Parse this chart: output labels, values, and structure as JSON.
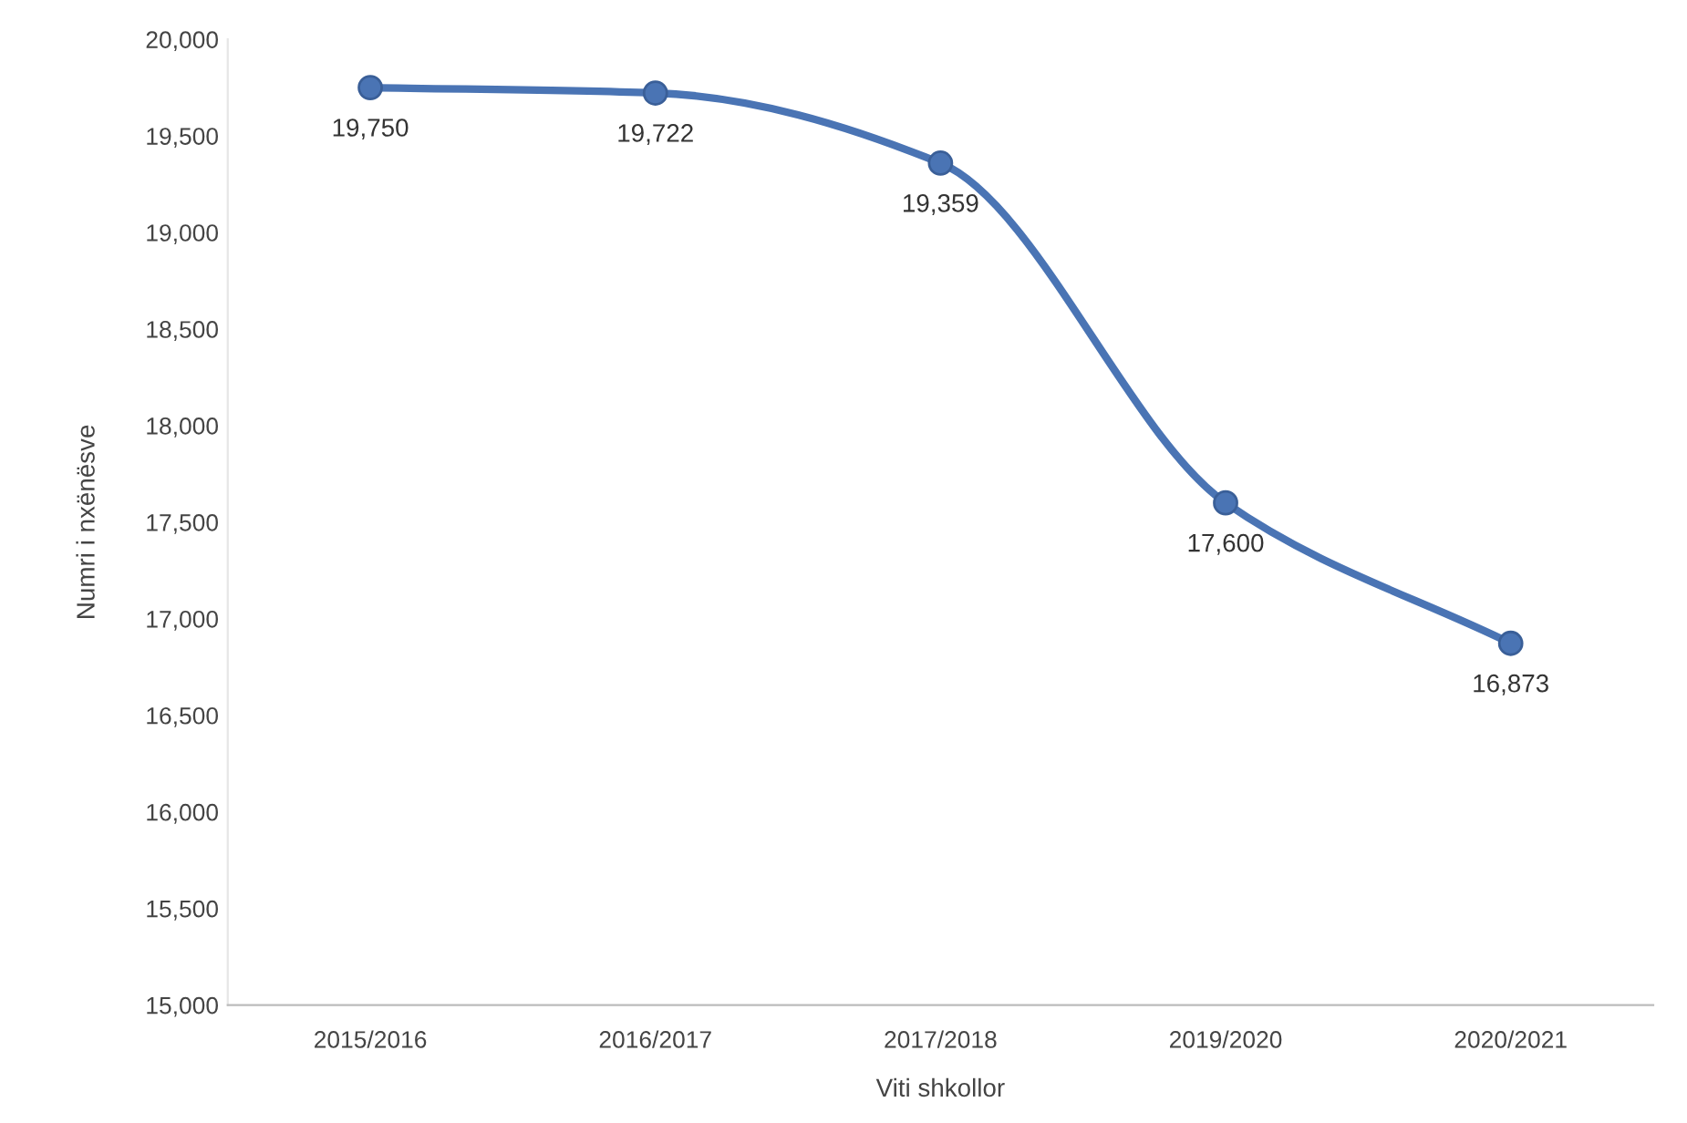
{
  "chart_data": {
    "type": "line",
    "xlabel": "Viti shkollor",
    "ylabel": "Numri i nxënësve",
    "categories": [
      "2015/2016",
      "2016/2017",
      "2017/2018",
      "2019/2020",
      "2020/2021"
    ],
    "series": [
      {
        "color": "#4a74b4",
        "values": [
          19750,
          19722,
          19359,
          17600,
          16873
        ],
        "value_labels": [
          "19,750",
          "19,722",
          "19,359",
          "17,600",
          "16,873"
        ]
      }
    ],
    "ylim": [
      15000,
      20000
    ],
    "yticks": [
      {
        "value": 15000,
        "label": "15,000"
      },
      {
        "value": 15500,
        "label": "15,500"
      },
      {
        "value": 16000,
        "label": "16,000"
      },
      {
        "value": 16500,
        "label": "16,500"
      },
      {
        "value": 17000,
        "label": "17,000"
      },
      {
        "value": 17500,
        "label": "17,500"
      },
      {
        "value": 18000,
        "label": "18,000"
      },
      {
        "value": 18500,
        "label": "18,500"
      },
      {
        "value": 19000,
        "label": "19,000"
      },
      {
        "value": 19500,
        "label": "19,500"
      },
      {
        "value": 20000,
        "label": "20,000"
      }
    ],
    "marker": "circle",
    "line_style": "solid",
    "grid": false,
    "legend": false
  }
}
